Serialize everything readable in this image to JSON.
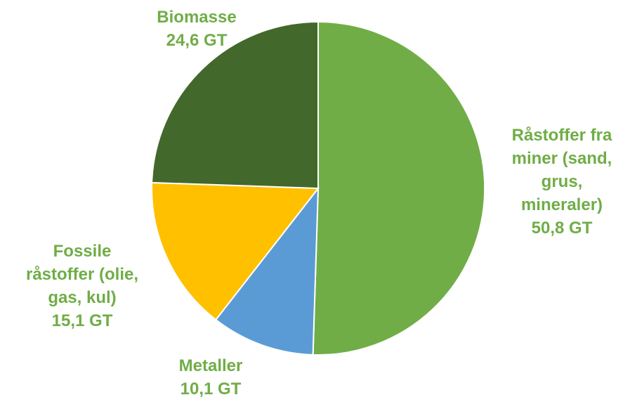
{
  "chart_data": {
    "type": "pie",
    "title": "",
    "label_color": "#70ad47",
    "start_angle_deg": 0,
    "direction": "clockwise",
    "slices": [
      {
        "key": "minerals",
        "label_lines": [
          "Råstoffer fra",
          "miner (sand,",
          "grus,",
          "mineraler)"
        ],
        "value": 50.8,
        "value_label": "50,8 GT",
        "color": "#70ad47"
      },
      {
        "key": "metals",
        "label_lines": [
          "Metaller"
        ],
        "value": 10.1,
        "value_label": "10,1 GT",
        "color": "#5b9bd5"
      },
      {
        "key": "fossils",
        "label_lines": [
          "Fossile",
          "råstoffer (olie,",
          "gas, kul)"
        ],
        "value": 15.1,
        "value_label": "15,1 GT",
        "color": "#ffc000"
      },
      {
        "key": "biomass",
        "label_lines": [
          "Biomasse"
        ],
        "value": 24.6,
        "value_label": "24,6  GT",
        "color": "#43682b"
      }
    ]
  }
}
